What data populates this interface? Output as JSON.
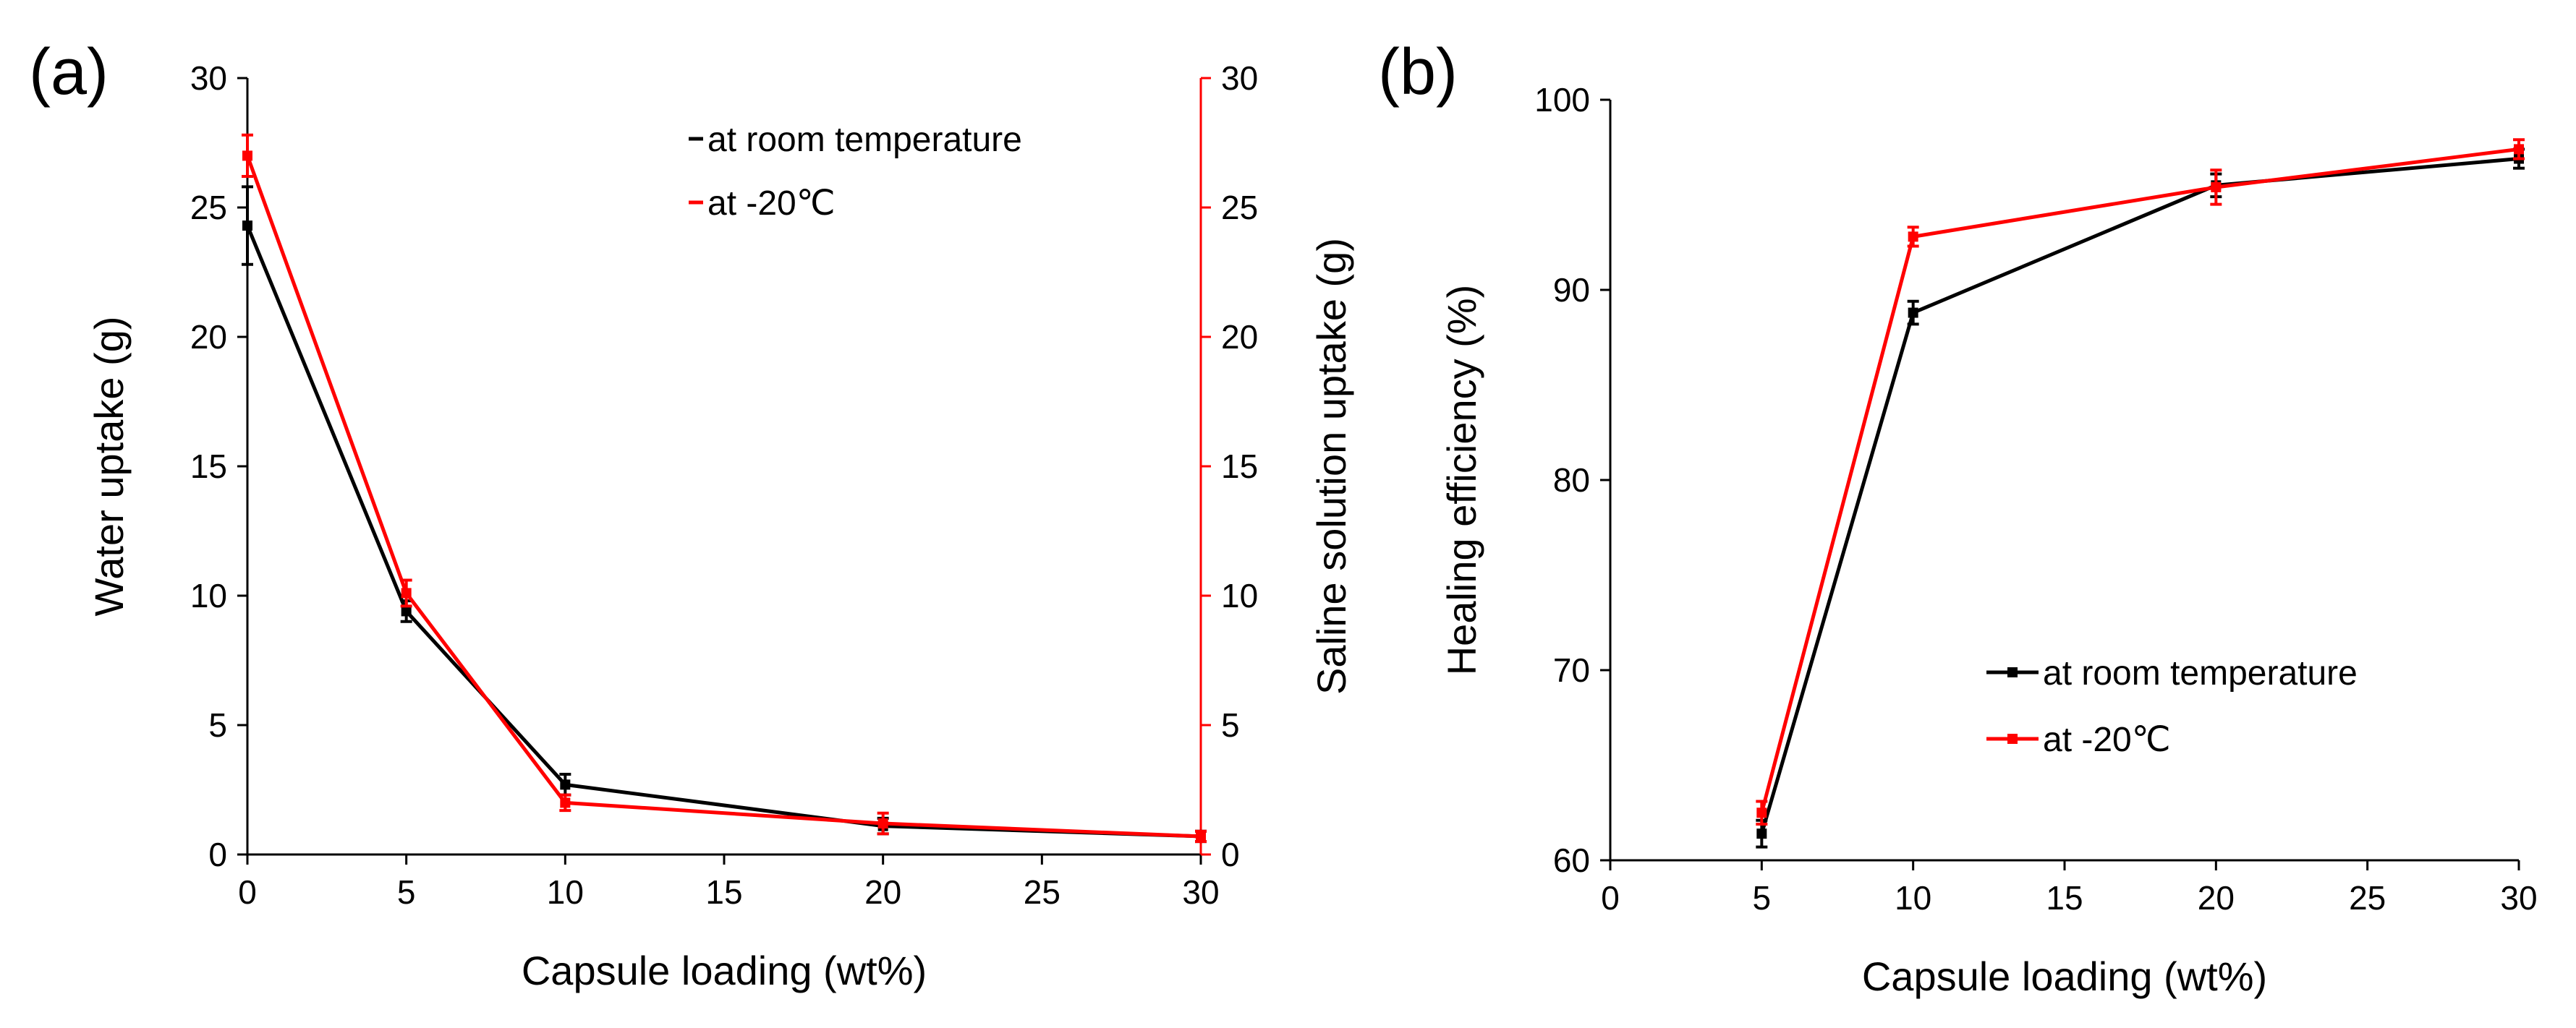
{
  "chart_data": [
    {
      "type": "line",
      "panel_label": "(a)",
      "xlabel": "Capsule loading (wt%)",
      "ylabel": "Water uptake (g)",
      "y2label": "Saline solution uptake (g)",
      "xlim": [
        0,
        30
      ],
      "ylim": [
        0,
        30
      ],
      "y2lim": [
        0,
        30
      ],
      "x_ticks": [
        0,
        5,
        10,
        15,
        20,
        25,
        30
      ],
      "y_ticks": [
        0,
        5,
        10,
        15,
        20,
        25,
        30
      ],
      "y2_ticks": [
        0,
        5,
        10,
        15,
        20,
        25,
        30
      ],
      "legend_position": "top-right",
      "series": [
        {
          "name": "at room temperature",
          "color": "#000000",
          "axis": "left",
          "x": [
            0,
            5,
            10,
            20,
            30
          ],
          "values": [
            24.3,
            9.4,
            2.7,
            1.1,
            0.7
          ],
          "errors": [
            1.5,
            0.4,
            0.4,
            0.3,
            0.2
          ]
        },
        {
          "name": "at -20℃",
          "color": "#ff0000",
          "axis": "right",
          "x": [
            0,
            5,
            10,
            20,
            30
          ],
          "values": [
            27.0,
            10.1,
            2.0,
            1.2,
            0.7
          ],
          "errors": [
            0.8,
            0.5,
            0.3,
            0.4,
            0.2
          ]
        }
      ]
    },
    {
      "type": "line",
      "panel_label": "(b)",
      "xlabel": "Capsule loading (wt%)",
      "ylabel": "Healing efficiency (%)",
      "xlim": [
        0,
        30
      ],
      "ylim": [
        60,
        100
      ],
      "x_ticks": [
        0,
        5,
        10,
        15,
        20,
        25,
        30
      ],
      "y_ticks": [
        60,
        70,
        80,
        90,
        100
      ],
      "legend_position": "bottom-right",
      "series": [
        {
          "name": "at room temperature",
          "color": "#000000",
          "x": [
            5,
            10,
            20,
            30
          ],
          "values": [
            61.4,
            88.8,
            95.5,
            96.9
          ],
          "errors": [
            0.7,
            0.6,
            0.6,
            0.5
          ]
        },
        {
          "name": "at -20℃",
          "color": "#ff0000",
          "x": [
            5,
            10,
            20,
            30
          ],
          "values": [
            62.5,
            92.8,
            95.4,
            97.4
          ],
          "errors": [
            0.6,
            0.5,
            0.9,
            0.5
          ]
        }
      ]
    }
  ]
}
